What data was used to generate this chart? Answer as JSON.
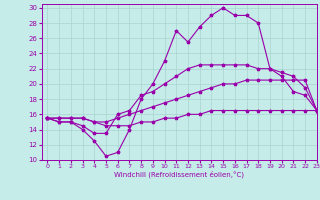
{
  "xlabel": "Windchill (Refroidissement éolien,°C)",
  "xlim": [
    -0.5,
    23
  ],
  "ylim": [
    10,
    30.5
  ],
  "yticks": [
    10,
    12,
    14,
    16,
    18,
    20,
    22,
    24,
    26,
    28,
    30
  ],
  "xticks": [
    0,
    1,
    2,
    3,
    4,
    5,
    6,
    7,
    8,
    9,
    10,
    11,
    12,
    13,
    14,
    15,
    16,
    17,
    18,
    19,
    20,
    21,
    22,
    23
  ],
  "background_color": "#c5ece8",
  "grid_color": "#a8d5d0",
  "line_color": "#9900aa",
  "curve1_y": [
    15.5,
    15.0,
    15.0,
    14.0,
    12.5,
    10.5,
    11.0,
    14.0,
    18.0,
    20.0,
    23.0,
    27.0,
    25.5,
    27.5,
    29.0,
    30.0,
    29.0,
    29.0,
    28.0,
    22.0,
    21.0,
    19.0,
    18.5,
    16.5
  ],
  "curve2_y": [
    15.5,
    15.0,
    15.0,
    14.5,
    13.5,
    13.5,
    16.0,
    16.5,
    18.5,
    19.0,
    20.0,
    21.0,
    22.0,
    22.5,
    22.5,
    22.5,
    22.5,
    22.5,
    22.0,
    22.0,
    21.5,
    21.0,
    19.5,
    16.5
  ],
  "curve3_y": [
    15.5,
    15.5,
    15.5,
    15.5,
    15.0,
    15.0,
    15.5,
    16.0,
    16.5,
    17.0,
    17.5,
    18.0,
    18.5,
    19.0,
    19.5,
    20.0,
    20.0,
    20.5,
    20.5,
    20.5,
    20.5,
    20.5,
    20.5,
    16.5
  ],
  "curve4_y": [
    15.5,
    15.5,
    15.5,
    15.5,
    15.0,
    14.5,
    14.5,
    14.5,
    15.0,
    15.0,
    15.5,
    15.5,
    16.0,
    16.0,
    16.5,
    16.5,
    16.5,
    16.5,
    16.5,
    16.5,
    16.5,
    16.5,
    16.5,
    16.5
  ]
}
